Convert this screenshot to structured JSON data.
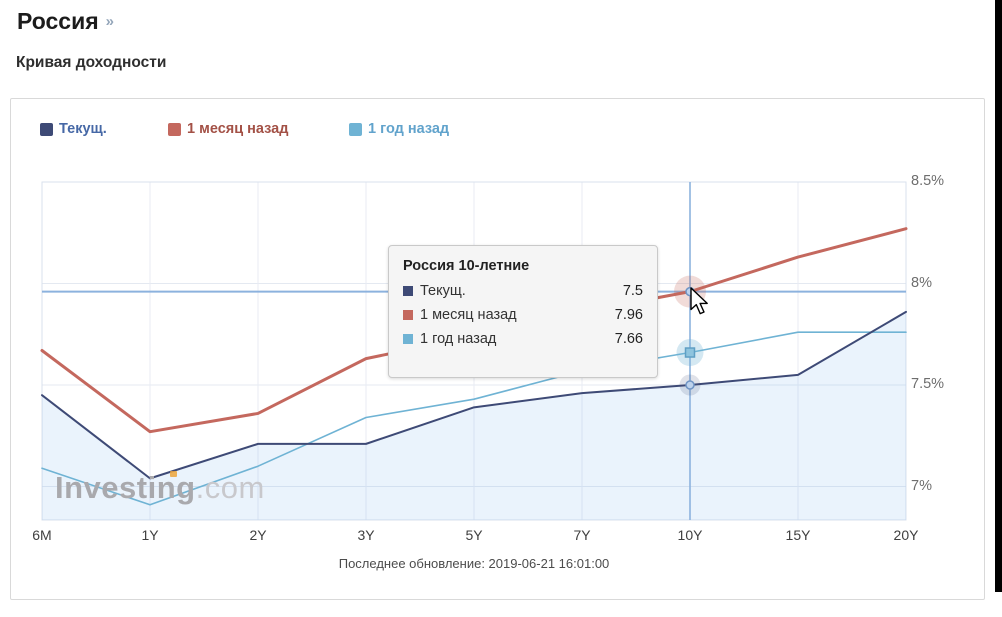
{
  "header": {
    "title": "Россия",
    "title_arrow": "»",
    "subtitle": "Кривая доходности"
  },
  "legend": [
    {
      "label": "Текущ.",
      "color": "#3e4a76",
      "text_color": "#4668a6"
    },
    {
      "label": "1 месяц назад",
      "color": "#c4685e",
      "text_color": "#a35146"
    },
    {
      "label": "1 год назад",
      "color": "#6fb3d4",
      "text_color": "#61a3cc"
    }
  ],
  "tooltip": {
    "title": "Россия 10-летние",
    "rows": [
      {
        "label": "Текущ.",
        "value": "7.5",
        "color": "#3e4a76"
      },
      {
        "label": "1 месяц назад",
        "value": "7.96",
        "color": "#c4685e"
      },
      {
        "label": "1 год назад",
        "value": "7.66",
        "color": "#6fb3d4"
      }
    ]
  },
  "footer": {
    "last_update": "Последнее обновление: 2019-06-21 16:01:00"
  },
  "watermark": {
    "main": "Investing",
    "suffix": ".com"
  },
  "chart_data": {
    "type": "line",
    "title": "Кривая доходности (Россия)",
    "categories": [
      "6M",
      "1Y",
      "2Y",
      "3Y",
      "5Y",
      "7Y",
      "10Y",
      "15Y",
      "20Y"
    ],
    "series": [
      {
        "name": "Текущ.",
        "color": "#3e4a76",
        "width": 2,
        "area": true,
        "marker": "circle",
        "values": [
          7.45,
          7.04,
          7.21,
          7.21,
          7.39,
          7.46,
          7.5,
          7.55,
          7.86
        ]
      },
      {
        "name": "1 месяц назад",
        "color": "#c4685e",
        "width": 3,
        "area": false,
        "marker": "circle",
        "values": [
          7.67,
          7.27,
          7.36,
          7.63,
          7.74,
          7.86,
          7.96,
          8.13,
          8.27
        ]
      },
      {
        "name": "1 год назад",
        "color": "#6fb3d4",
        "width": 1.6,
        "area": false,
        "marker": "square",
        "values": [
          7.09,
          6.91,
          7.1,
          7.34,
          7.43,
          7.57,
          7.66,
          7.76,
          7.76
        ]
      }
    ],
    "yticks": [
      7,
      7.5,
      8,
      8.5
    ],
    "ytick_labels": [
      "7%",
      "7.5%",
      "8%",
      "8.5%"
    ],
    "ylim": [
      6.835,
      8.5
    ],
    "yaxis_side": "right",
    "xlabel": "",
    "ylabel": "",
    "grid": true,
    "legend_position": "top",
    "hover": {
      "category": "10Y",
      "index": 6,
      "crosshair_value": 7.96
    }
  }
}
